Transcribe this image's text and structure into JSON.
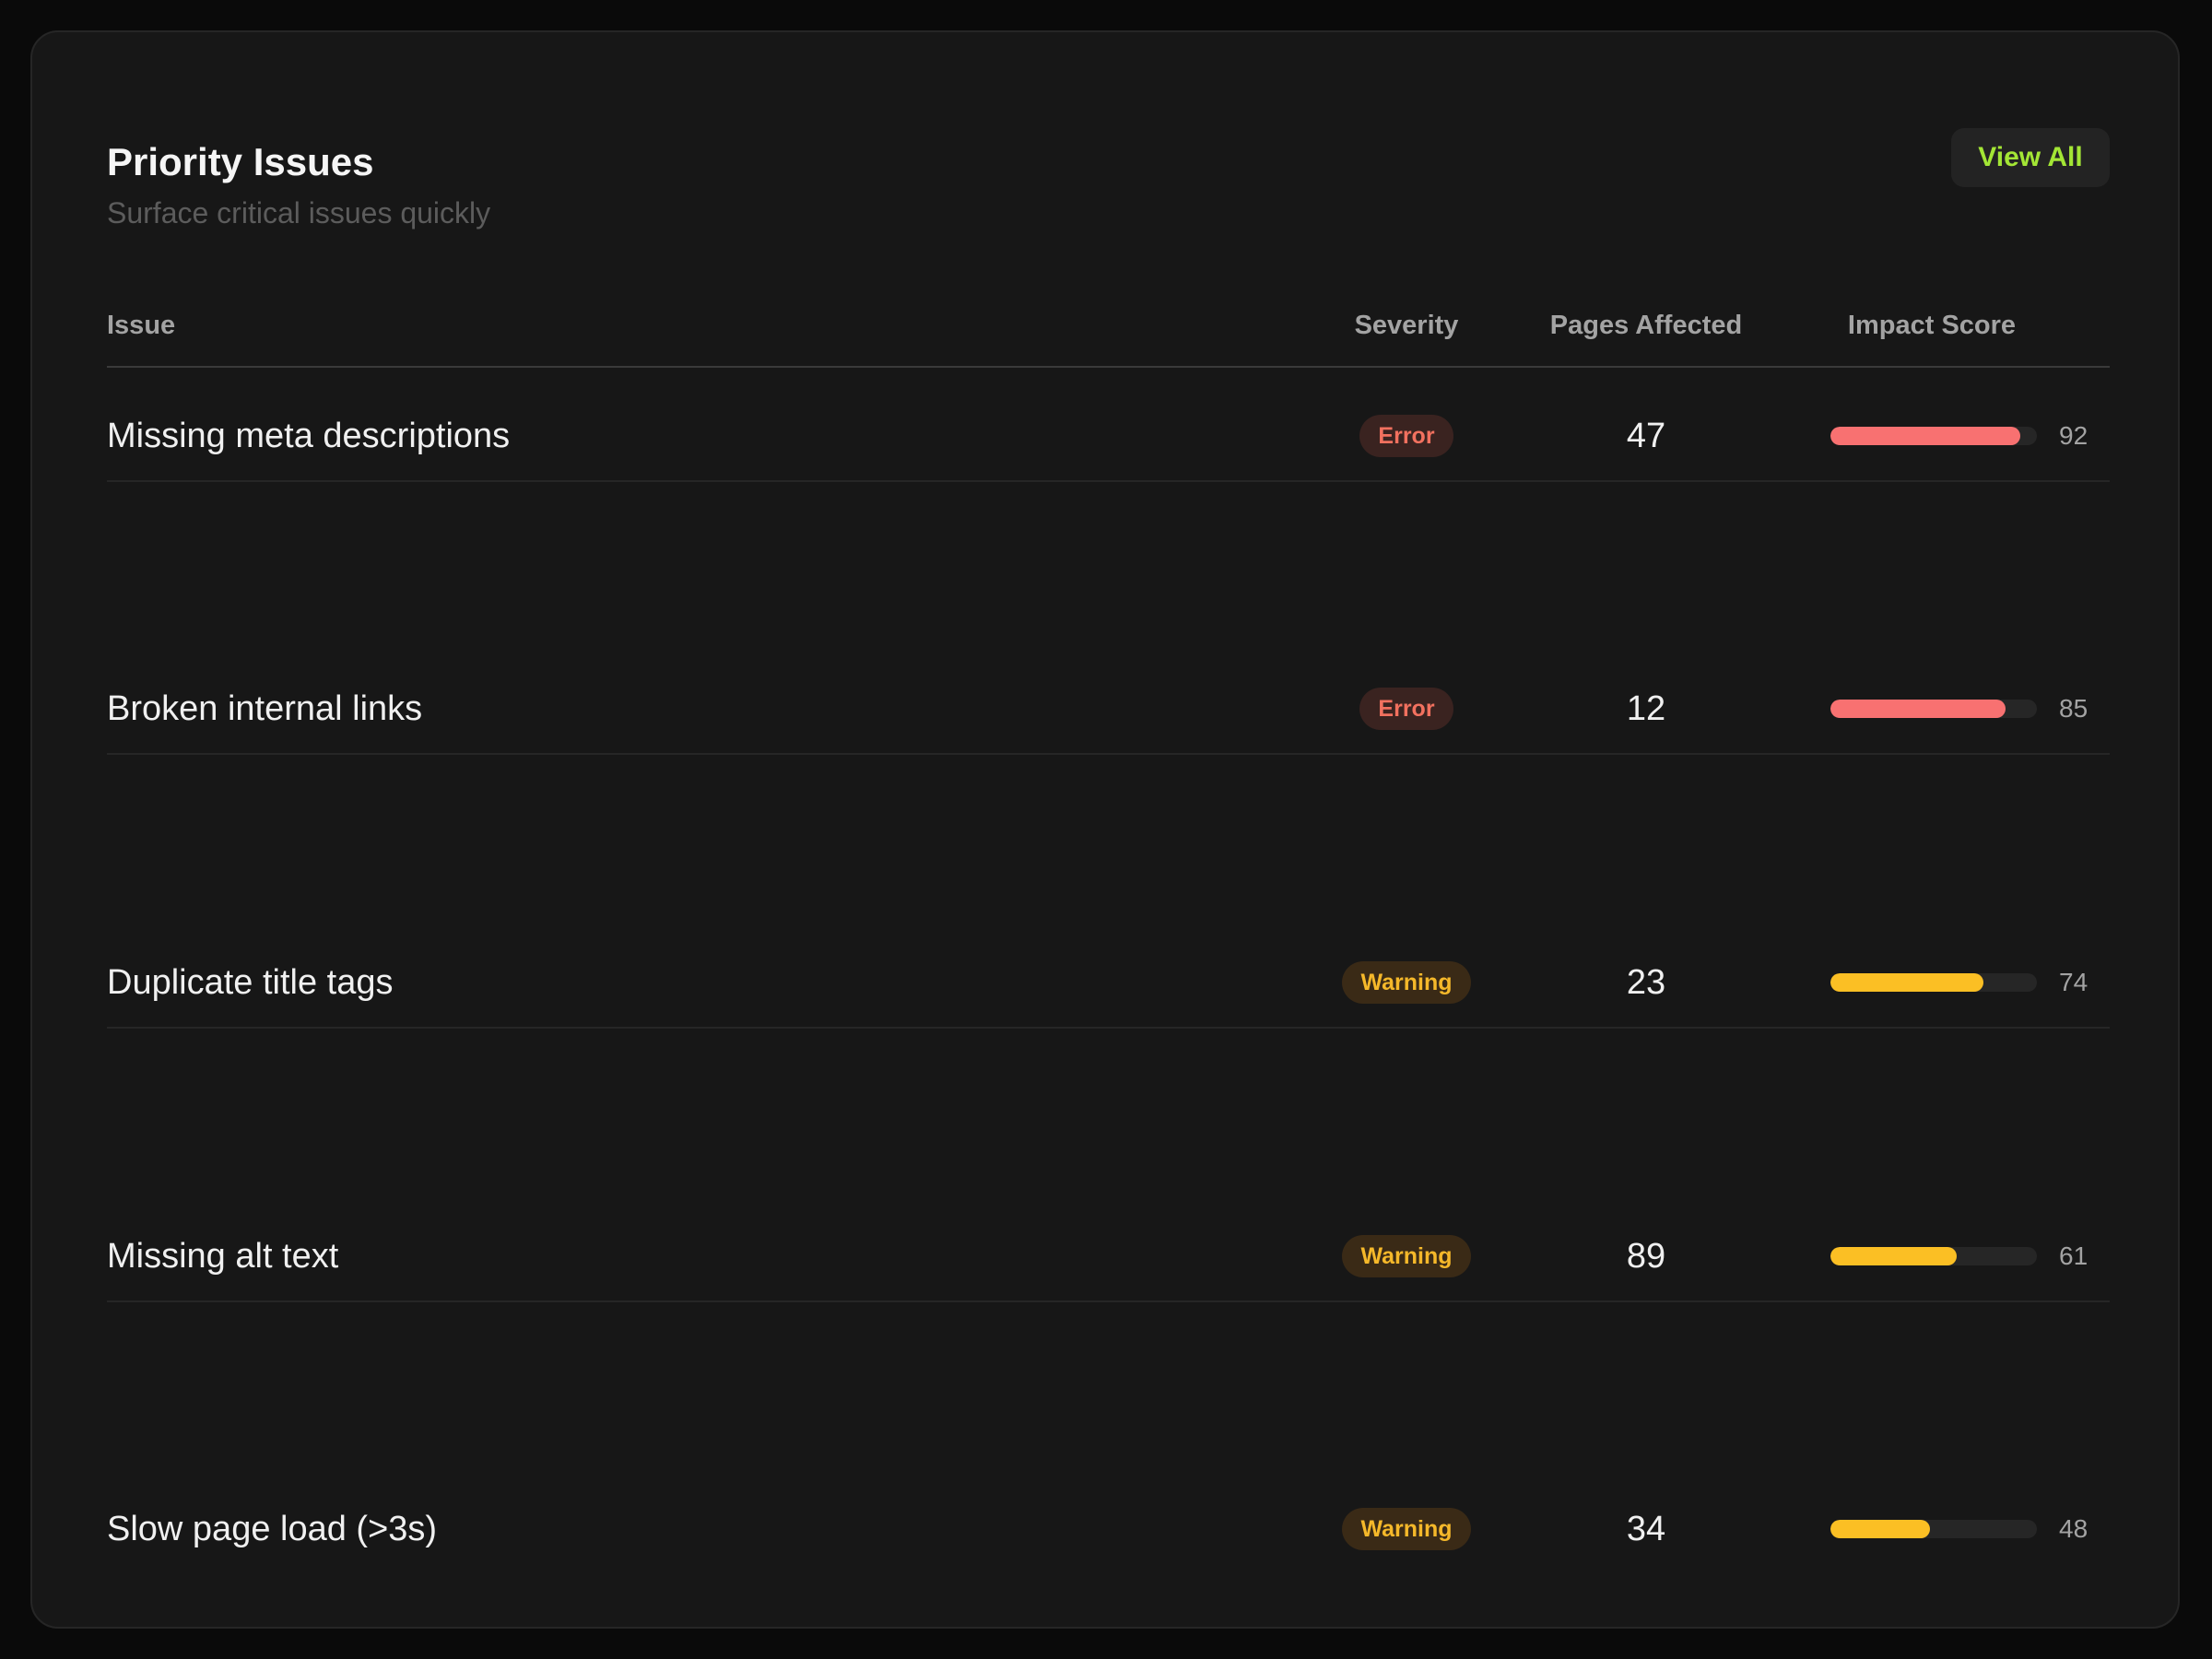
{
  "header": {
    "title": "Priority Issues",
    "subtitle": "Surface critical issues quickly",
    "view_all_label": "View All"
  },
  "columns": {
    "issue": "Issue",
    "severity": "Severity",
    "pages_affected": "Pages Affected",
    "impact_score": "Impact Score"
  },
  "colors": {
    "error": "#f87171",
    "warning": "#fbbf24",
    "accent": "#a3e635"
  },
  "rows": [
    {
      "issue": "Missing meta descriptions",
      "severity": "Error",
      "severity_type": "error",
      "pages": "47",
      "impact": "92",
      "impact_fraction": 0.92
    },
    {
      "issue": "Broken internal links",
      "severity": "Error",
      "severity_type": "error",
      "pages": "12",
      "impact": "85",
      "impact_fraction": 0.85
    },
    {
      "issue": "Duplicate title tags",
      "severity": "Warning",
      "severity_type": "warning",
      "pages": "23",
      "impact": "74",
      "impact_fraction": 0.74
    },
    {
      "issue": "Missing alt text",
      "severity": "Warning",
      "severity_type": "warning",
      "pages": "89",
      "impact": "61",
      "impact_fraction": 0.61
    },
    {
      "issue": "Slow page load (>3s)",
      "severity": "Warning",
      "severity_type": "warning",
      "pages": "34",
      "impact": "48",
      "impact_fraction": 0.48
    }
  ]
}
